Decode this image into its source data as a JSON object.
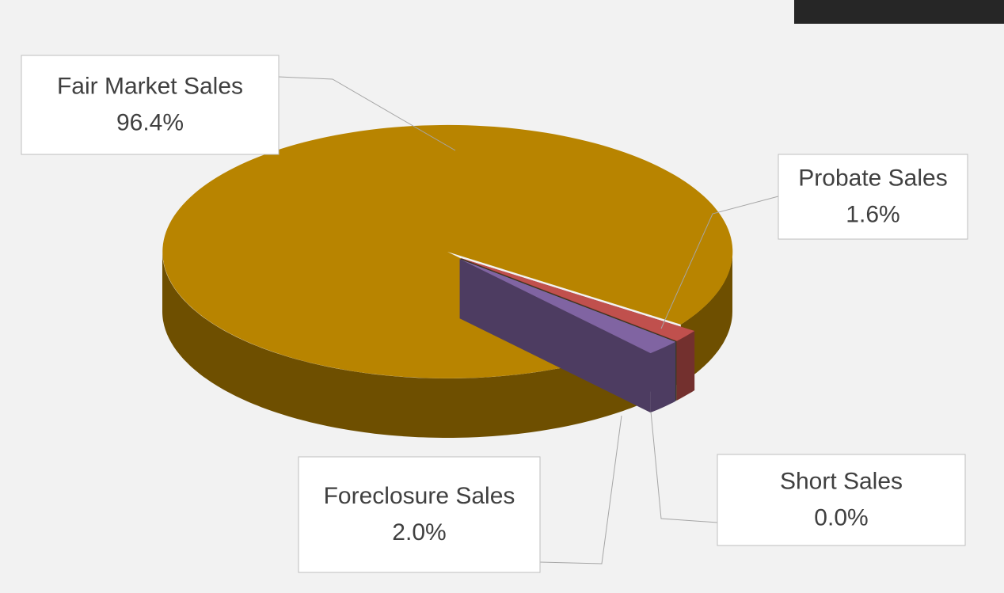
{
  "chart_data": {
    "type": "pie",
    "categories": [
      "Fair Market Sales",
      "Probate Sales",
      "Short Sales",
      "Foreclosure Sales"
    ],
    "values": [
      96.4,
      1.6,
      0.0,
      2.0
    ],
    "value_labels": [
      "96.4%",
      "1.6%",
      "0.0%",
      "2.0%"
    ],
    "colors": [
      "#b88400",
      "#c0504d",
      "#4f6228",
      "#8064a2"
    ]
  }
}
